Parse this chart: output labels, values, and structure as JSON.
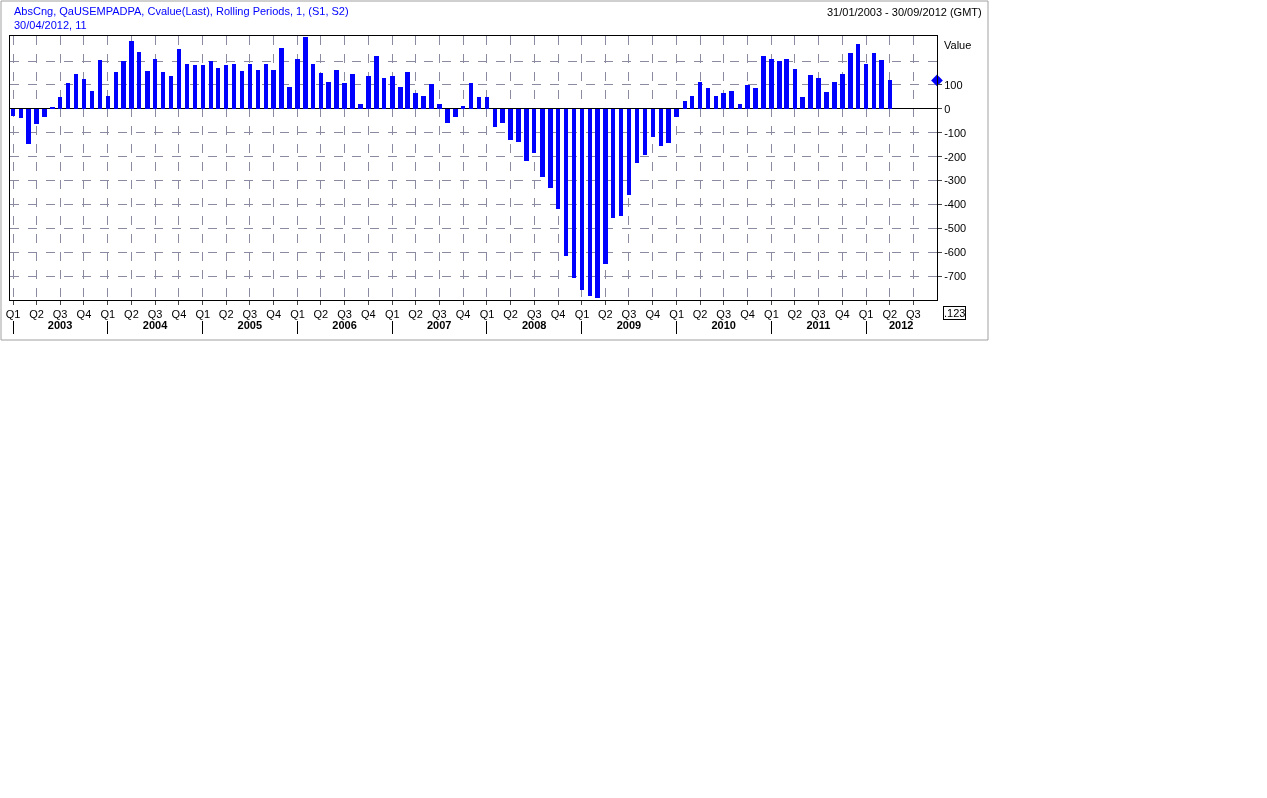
{
  "chart_data": {
    "type": "bar",
    "annotations": [
      "31/01/2003 - 30/09/2012 (GMT)",
      "30/04/2012, 11",
      ".123"
    ],
    "ylabel": "Value",
    "x": [
      "2003-01",
      "2003-02",
      "2003-03",
      "2003-04",
      "2003-05",
      "2003-06",
      "2003-07",
      "2003-08",
      "2003-09",
      "2003-10",
      "2003-11",
      "2003-12",
      "2004-01",
      "2004-02",
      "2004-03",
      "2004-04",
      "2004-05",
      "2004-06",
      "2004-07",
      "2004-08",
      "2004-09",
      "2004-10",
      "2004-11",
      "2004-12",
      "2005-01",
      "2005-02",
      "2005-03",
      "2005-04",
      "2005-05",
      "2005-06",
      "2005-07",
      "2005-08",
      "2005-09",
      "2005-10",
      "2005-11",
      "2005-12",
      "2006-01",
      "2006-02",
      "2006-03",
      "2006-04",
      "2006-05",
      "2006-06",
      "2006-07",
      "2006-08",
      "2006-09",
      "2006-10",
      "2006-11",
      "2006-12",
      "2007-01",
      "2007-02",
      "2007-03",
      "2007-04",
      "2007-05",
      "2007-06",
      "2007-07",
      "2007-08",
      "2007-09",
      "2007-10",
      "2007-11",
      "2007-12",
      "2008-01",
      "2008-02",
      "2008-03",
      "2008-04",
      "2008-05",
      "2008-06",
      "2008-07",
      "2008-08",
      "2008-09",
      "2008-10",
      "2008-11",
      "2008-12",
      "2009-01",
      "2009-02",
      "2009-03",
      "2009-04",
      "2009-05",
      "2009-06",
      "2009-07",
      "2009-08",
      "2009-09",
      "2009-10",
      "2009-11",
      "2009-12",
      "2010-01",
      "2010-02",
      "2010-03",
      "2010-04",
      "2010-05",
      "2010-06",
      "2010-07",
      "2010-08",
      "2010-09",
      "2010-10",
      "2010-11",
      "2010-12",
      "2011-01",
      "2011-02",
      "2011-03",
      "2011-04",
      "2011-05",
      "2011-06",
      "2011-07",
      "2011-08",
      "2011-09",
      "2011-10",
      "2011-11",
      "2011-12",
      "2012-01",
      "2012-02",
      "2012-03",
      "2012-04"
    ],
    "series": [
      {
        "name": "AbsCng, QaUSEMPADPA, Cvalue(Last), Rolling Periods, 1, (S1, S2)",
        "color": "#0000ff",
        "values": [
          -30,
          -40,
          -147,
          -65,
          -35,
          5,
          50,
          107,
          147,
          125,
          75,
          204,
          54,
          153,
          200,
          283,
          240,
          160,
          207,
          153,
          137,
          250,
          188,
          184,
          184,
          201,
          171,
          182,
          186,
          157,
          188,
          161,
          188,
          164,
          253,
          93,
          207,
          299,
          186,
          149,
          113,
          163,
          109,
          147,
          21,
          136,
          222,
          128,
          139,
          92,
          155,
          68,
          53,
          105,
          21,
          -59,
          -36,
          10,
          108,
          50,
          49,
          -74,
          -59,
          -132,
          -139,
          -217,
          -183,
          -286,
          -332,
          -417,
          -617,
          -709,
          -758,
          -784,
          -792,
          -650,
          -458,
          -449,
          -361,
          -225,
          -195,
          -118,
          -155,
          -142,
          -34,
          33,
          54,
          114,
          86,
          54,
          68,
          75,
          20,
          101,
          88,
          220,
          209,
          201,
          208,
          166,
          51,
          143,
          130,
          71,
          112,
          147,
          233,
          272,
          187,
          233,
          205,
          119
        ]
      },
      {
        "type": "scatter",
        "marker": "diamond",
        "color": "#0000ff",
        "x": [
          "2012-09-30"
        ],
        "values": [
          119
        ]
      }
    ],
    "xlim": [
      "2002-12-20",
      "2012-09-30"
    ],
    "xticks": [
      {
        "value": "2003-01",
        "label": "Q1"
      },
      {
        "value": "2003-04",
        "label": "Q2"
      },
      {
        "value": "2003-07",
        "label": "Q3"
      },
      {
        "value": "2003-10",
        "label": "Q4"
      },
      {
        "value": "2004-01",
        "label": "Q1"
      },
      {
        "value": "2004-04",
        "label": "Q2"
      },
      {
        "value": "2004-07",
        "label": "Q3"
      },
      {
        "value": "2004-10",
        "label": "Q4"
      },
      {
        "value": "2005-01",
        "label": "Q1"
      },
      {
        "value": "2005-04",
        "label": "Q2"
      },
      {
        "value": "2005-07",
        "label": "Q3"
      },
      {
        "value": "2005-10",
        "label": "Q4"
      },
      {
        "value": "2006-01",
        "label": "Q1"
      },
      {
        "value": "2006-04",
        "label": "Q2"
      },
      {
        "value": "2006-07",
        "label": "Q3"
      },
      {
        "value": "2006-10",
        "label": "Q4"
      },
      {
        "value": "2007-01",
        "label": "Q1"
      },
      {
        "value": "2007-04",
        "label": "Q2"
      },
      {
        "value": "2007-07",
        "label": "Q3"
      },
      {
        "value": "2007-10",
        "label": "Q4"
      },
      {
        "value": "2008-01",
        "label": "Q1"
      },
      {
        "value": "2008-04",
        "label": "Q2"
      },
      {
        "value": "2008-07",
        "label": "Q3"
      },
      {
        "value": "2008-10",
        "label": "Q4"
      },
      {
        "value": "2009-01",
        "label": "Q1"
      },
      {
        "value": "2009-04",
        "label": "Q2"
      },
      {
        "value": "2009-07",
        "label": "Q3"
      },
      {
        "value": "2009-10",
        "label": "Q4"
      },
      {
        "value": "2010-01",
        "label": "Q1"
      },
      {
        "value": "2010-04",
        "label": "Q2"
      },
      {
        "value": "2010-07",
        "label": "Q3"
      },
      {
        "value": "2010-10",
        "label": "Q4"
      },
      {
        "value": "2011-01",
        "label": "Q1"
      },
      {
        "value": "2011-04",
        "label": "Q2"
      },
      {
        "value": "2011-07",
        "label": "Q3"
      },
      {
        "value": "2011-10",
        "label": "Q4"
      },
      {
        "value": "2012-01",
        "label": "Q1"
      },
      {
        "value": "2012-04",
        "label": "Q2"
      },
      {
        "value": "2012-07",
        "label": "Q3"
      }
    ],
    "x2lim": [
      "2002-12-20",
      "2012-09-30"
    ],
    "x2ticks": [
      {
        "value": "2003-01",
        "label": null
      },
      {
        "value": "2003-07",
        "label": "2003"
      },
      {
        "value": "2004-01",
        "label": null
      },
      {
        "value": "2004-07",
        "label": "2004"
      },
      {
        "value": "2005-01",
        "label": null
      },
      {
        "value": "2005-07",
        "label": "2005"
      },
      {
        "value": "2006-01",
        "label": null
      },
      {
        "value": "2006-07",
        "label": "2006"
      },
      {
        "value": "2007-01",
        "label": null
      },
      {
        "value": "2007-07",
        "label": "2007"
      },
      {
        "value": "2008-01",
        "label": null
      },
      {
        "value": "2008-07",
        "label": "2008"
      },
      {
        "value": "2009-01",
        "label": null
      },
      {
        "value": "2009-07",
        "label": "2009"
      },
      {
        "value": "2010-01",
        "label": null
      },
      {
        "value": "2010-07",
        "label": "2010"
      },
      {
        "value": "2011-01",
        "label": null
      },
      {
        "value": "2011-07",
        "label": "2011"
      },
      {
        "value": "2012-01",
        "label": null
      },
      {
        "value": "2012-05-15",
        "label": "2012"
      }
    ],
    "ylim": [
      -800,
      305
    ],
    "yticks": [
      {
        "value": 200,
        "label": null
      },
      100,
      0,
      -100,
      -200,
      -300,
      -400,
      -500,
      -600,
      -700
    ],
    "grid": true,
    "legend": false
  }
}
